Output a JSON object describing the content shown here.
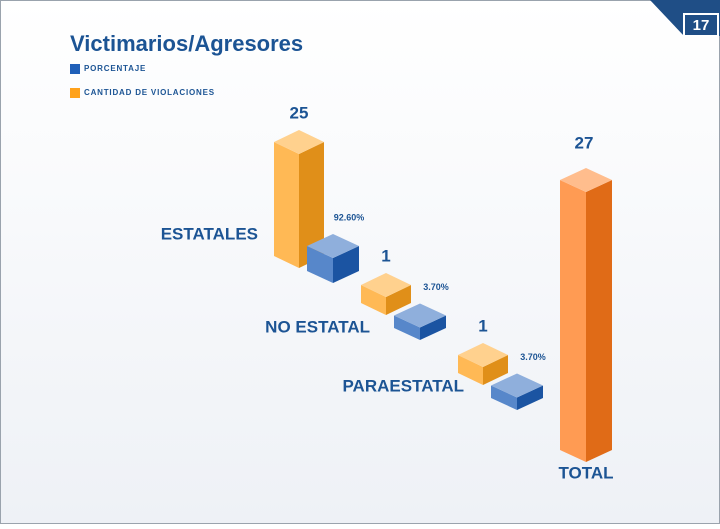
{
  "page_number": "17",
  "chart_data": {
    "type": "isometric-bar",
    "title": "Victimarios/Agresores",
    "categories": [
      "ESTATALES",
      "NO ESTATAL",
      "PARAESTATAL"
    ],
    "series": [
      {
        "name": "PORCENTAJE",
        "color": "#1f5fb8",
        "values": [
          92.6,
          3.7,
          3.7
        ],
        "value_labels": [
          "92.60%",
          "3.70%",
          "3.70%"
        ]
      },
      {
        "name": "CANTIDAD DE VIOLACIONES",
        "color": "#ffa21c",
        "values": [
          25,
          1,
          1
        ]
      }
    ],
    "total": {
      "label": "TOTAL",
      "value": 27,
      "color": "#ff7a1a"
    }
  }
}
